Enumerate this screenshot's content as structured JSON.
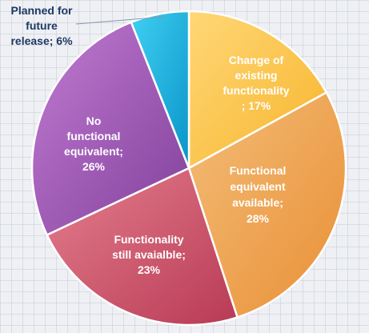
{
  "chart_data": {
    "type": "pie",
    "title": "",
    "legend": "none",
    "slices": [
      {
        "label": "Change of existing functionality",
        "value": 17,
        "display_lines": [
          "Change of",
          "existing",
          "functionality",
          "; 17%"
        ],
        "color_light": "#ffd777",
        "color_dark": "#f7b52c"
      },
      {
        "label": "Functional equivalent available",
        "value": 28,
        "display_lines": [
          "Functional",
          "equivalent",
          "available;",
          "28%"
        ],
        "color_light": "#f3bd78",
        "color_dark": "#e98f34"
      },
      {
        "label": "Functionality still avaialble",
        "value": 23,
        "display_lines": [
          "Functionality",
          "still avaialble;",
          "23%"
        ],
        "color_light": "#e57f8e",
        "color_dark": "#b83a55"
      },
      {
        "label": "No functional equivalent",
        "value": 26,
        "display_lines": [
          "No",
          "functional",
          "equivalent;",
          "26%"
        ],
        "color_light": "#c27bd2",
        "color_dark": "#80409b"
      },
      {
        "label": "Planned for future release",
        "value": 6,
        "display_lines": [
          "Planned for",
          "future",
          "release; 6%"
        ],
        "color_light": "#3fd0f3",
        "color_dark": "#0a94c7"
      }
    ]
  }
}
